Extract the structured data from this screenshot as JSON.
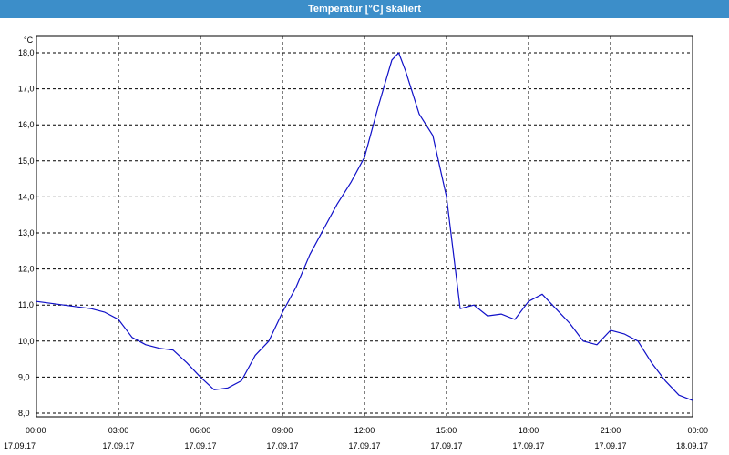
{
  "window": {
    "title": "Temperatur [°C] skaliert"
  },
  "chart_data": {
    "type": "line",
    "title": "Temperatur [°C] skaliert",
    "ylabel": "°C",
    "xlabel": "",
    "ylim": [
      8.0,
      18.0
    ],
    "y_ticks": [
      "8,0",
      "9,0",
      "10,0",
      "11,0",
      "12,0",
      "13,0",
      "14,0",
      "15,0",
      "16,0",
      "17,0",
      "18,0"
    ],
    "x_ticks": [
      {
        "time": "00:00",
        "date": "17.09.17"
      },
      {
        "time": "03:00",
        "date": "17.09.17"
      },
      {
        "time": "06:00",
        "date": "17.09.17"
      },
      {
        "time": "09:00",
        "date": "17.09.17"
      },
      {
        "time": "12:00",
        "date": "17.09.17"
      },
      {
        "time": "15:00",
        "date": "17.09.17"
      },
      {
        "time": "18:00",
        "date": "17.09.17"
      },
      {
        "time": "21:00",
        "date": "17.09.17"
      },
      {
        "time": "00:00",
        "date": "18.09.17"
      }
    ],
    "xlim": [
      "17.09.17 00:00",
      "18.09.17 00:00"
    ],
    "grid": true,
    "series_color": "#1010c8",
    "series": [
      {
        "x": [
          "17.09.17 00:00",
          "17.09.17 00:30",
          "17.09.17 01:00",
          "17.09.17 01:30",
          "17.09.17 02:00",
          "17.09.17 02:30",
          "17.09.17 03:00",
          "17.09.17 03:30",
          "17.09.17 04:00",
          "17.09.17 04:30",
          "17.09.17 05:00",
          "17.09.17 05:30",
          "17.09.17 06:00",
          "17.09.17 06:30",
          "17.09.17 07:00",
          "17.09.17 07:30",
          "17.09.17 08:00",
          "17.09.17 08:30",
          "17.09.17 09:00",
          "17.09.17 09:30",
          "17.09.17 10:00",
          "17.09.17 10:30",
          "17.09.17 11:00",
          "17.09.17 11:30",
          "17.09.17 12:00",
          "17.09.17 12:30",
          "17.09.17 13:00",
          "17.09.17 13:15",
          "17.09.17 13:30",
          "17.09.17 14:00",
          "17.09.17 14:30",
          "17.09.17 15:00",
          "17.09.17 15:30",
          "17.09.17 16:00",
          "17.09.17 16:30",
          "17.09.17 17:00",
          "17.09.17 17:30",
          "17.09.17 18:00",
          "17.09.17 18:30",
          "17.09.17 19:00",
          "17.09.17 19:30",
          "17.09.17 20:00",
          "17.09.17 20:30",
          "17.09.17 21:00",
          "17.09.17 21:30",
          "17.09.17 22:00",
          "17.09.17 22:30",
          "17.09.17 23:00",
          "17.09.17 23:30",
          "18.09.17 00:00"
        ],
        "values": [
          11.1,
          11.05,
          11.0,
          10.95,
          10.9,
          10.8,
          10.6,
          10.1,
          9.9,
          9.8,
          9.75,
          9.4,
          9.0,
          8.65,
          8.7,
          8.9,
          9.6,
          10.0,
          10.8,
          11.5,
          12.4,
          13.1,
          13.8,
          14.4,
          15.1,
          16.5,
          17.8,
          18.0,
          17.5,
          16.3,
          15.7,
          14.0,
          10.9,
          11.0,
          10.7,
          10.75,
          10.6,
          11.1,
          11.3,
          10.9,
          10.5,
          10.0,
          9.9,
          10.3,
          10.2,
          10.0,
          9.4,
          8.9,
          8.5,
          8.35
        ]
      }
    ]
  }
}
